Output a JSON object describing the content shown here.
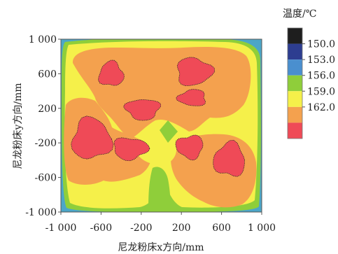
{
  "chart_data": {
    "type": "heatmap",
    "subtype": "filled-contour",
    "xlabel": "尼龙粉床x方向/mm",
    "ylabel": "尼龙粉床y方向/mm",
    "xlim": [
      -1000,
      1000
    ],
    "ylim": [
      -1000,
      1000
    ],
    "x_ticks": [
      "-1 000",
      "-600",
      "-200",
      "200",
      "600",
      "1 000"
    ],
    "x_tick_values": [
      -1000,
      -600,
      -200,
      200,
      600,
      1000
    ],
    "y_ticks": [
      "1 000",
      "600",
      "200",
      "-200",
      "-600",
      "-1 000"
    ],
    "y_tick_values": [
      1000,
      600,
      200,
      -200,
      -600,
      -1000
    ],
    "legend": {
      "title": "温度/℃",
      "labels": [
        "150.0",
        "153.0",
        "156.0",
        "159.0",
        "162.0"
      ],
      "levels": [
        150.0,
        153.0,
        156.0,
        159.0,
        162.0
      ],
      "colors": [
        "#1e1e1e",
        "#2d3d90",
        "#4a8fcf",
        "#8fce3a",
        "#f5f04a",
        "#f4a14e",
        "#ef4a57"
      ],
      "placement": "right"
    },
    "contour_colors": {
      "below_156": "#4ca6c8",
      "156_157": "#8fce3a",
      "157_159": "#f5f04a",
      "159_161": "#f4a14e",
      "above_161": "#ef4a57"
    },
    "hot_regions_above_161": [
      {
        "x": [
          -640,
          -360
        ],
        "y": [
          430,
          760
        ]
      },
      {
        "x": [
          120,
          530
        ],
        "y": [
          440,
          810
        ]
      },
      {
        "x": [
          -380,
          10
        ],
        "y": [
          50,
          330
        ]
      },
      {
        "x": [
          150,
          470
        ],
        "y": [
          210,
          430
        ]
      },
      {
        "x": [
          -920,
          -470
        ],
        "y": [
          -430,
          120
        ]
      },
      {
        "x": [
          -510,
          -110
        ],
        "y": [
          -410,
          -120
        ]
      },
      {
        "x": [
          130,
          440
        ],
        "y": [
          -400,
          -90
        ]
      },
      {
        "x": [
          500,
          860
        ],
        "y": [
          -620,
          -170
        ]
      }
    ]
  }
}
